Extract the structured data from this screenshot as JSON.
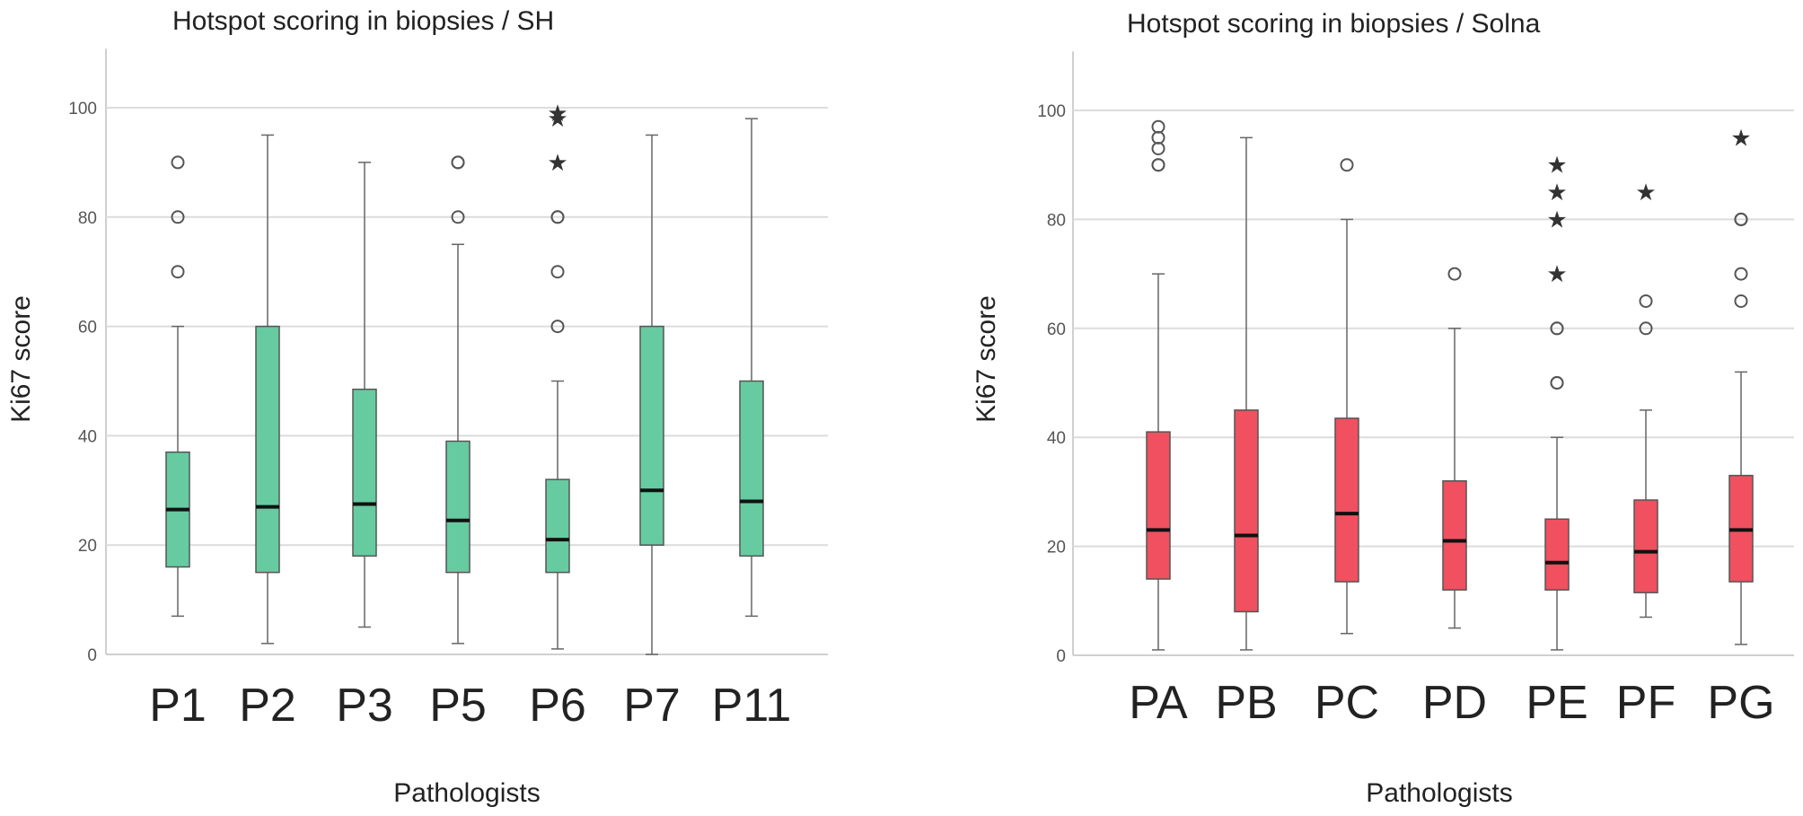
{
  "colors": {
    "left_box": "#66cba0",
    "right_box": "#f0505f",
    "box_stroke": "#555555"
  },
  "chart_data": [
    {
      "type": "boxplot",
      "title": "Hotspot scoring in biopsies / SH",
      "xlabel": "Pathologists",
      "ylabel": "Ki67 score",
      "ylim": [
        0,
        110
      ],
      "yticks": [
        0,
        20,
        40,
        60,
        80,
        100
      ],
      "grid": true,
      "fill": "#66cba0",
      "categories": [
        "P1",
        "P2",
        "P3",
        "P5",
        "P6",
        "P7",
        "P11"
      ],
      "boxes": [
        {
          "min": 7,
          "q1": 16,
          "median": 26.5,
          "q3": 37,
          "max": 60,
          "outliers": [
            70,
            80,
            90
          ],
          "extremes": []
        },
        {
          "min": 2,
          "q1": 15,
          "median": 27,
          "q3": 60,
          "max": 95,
          "outliers": [],
          "extremes": []
        },
        {
          "min": 5,
          "q1": 18,
          "median": 27.5,
          "q3": 48.5,
          "max": 90,
          "outliers": [],
          "extremes": []
        },
        {
          "min": 2,
          "q1": 15,
          "median": 24.5,
          "q3": 39,
          "max": 75,
          "outliers": [
            80,
            90,
            90
          ],
          "extremes": []
        },
        {
          "min": 1,
          "q1": 15,
          "median": 21,
          "q3": 32,
          "max": 50,
          "outliers": [
            60,
            70,
            80,
            80
          ],
          "extremes": [
            90,
            98,
            99
          ]
        },
        {
          "min": 0,
          "q1": 20,
          "median": 30,
          "q3": 60,
          "max": 95,
          "outliers": [],
          "extremes": []
        },
        {
          "min": 7,
          "q1": 18,
          "median": 28,
          "q3": 50,
          "max": 98,
          "outliers": [],
          "extremes": []
        }
      ]
    },
    {
      "type": "boxplot",
      "title": "Hotspot scoring in biopsies / Solna",
      "xlabel": "Pathologists",
      "ylabel": "Ki67 score",
      "ylim": [
        0,
        110
      ],
      "yticks": [
        0,
        20,
        40,
        60,
        80,
        100
      ],
      "grid": true,
      "fill": "#f0505f",
      "categories": [
        "PA",
        "PB",
        "PC",
        "PD",
        "PE",
        "PF",
        "PG"
      ],
      "boxes": [
        {
          "min": 1,
          "q1": 14,
          "median": 23,
          "q3": 41,
          "max": 70,
          "outliers": [
            90,
            90,
            93,
            95,
            97
          ],
          "extremes": []
        },
        {
          "min": 1,
          "q1": 8,
          "median": 22,
          "q3": 45,
          "max": 95,
          "outliers": [],
          "extremes": []
        },
        {
          "min": 4,
          "q1": 13.5,
          "median": 26,
          "q3": 43.5,
          "max": 80,
          "outliers": [
            90
          ],
          "extremes": []
        },
        {
          "min": 5,
          "q1": 12,
          "median": 21,
          "q3": 32,
          "max": 60,
          "outliers": [
            70
          ],
          "extremes": []
        },
        {
          "min": 1,
          "q1": 12,
          "median": 17,
          "q3": 25,
          "max": 40,
          "outliers": [
            50,
            50,
            60,
            60
          ],
          "extremes": [
            70,
            80,
            85,
            90
          ]
        },
        {
          "min": 7,
          "q1": 11.5,
          "median": 19,
          "q3": 28.5,
          "max": 45,
          "outliers": [
            60,
            65
          ],
          "extremes": [
            85
          ]
        },
        {
          "min": 2,
          "q1": 13.5,
          "median": 23,
          "q3": 33,
          "max": 52,
          "outliers": [
            65,
            70,
            80,
            80
          ],
          "extremes": [
            95
          ]
        }
      ]
    }
  ]
}
